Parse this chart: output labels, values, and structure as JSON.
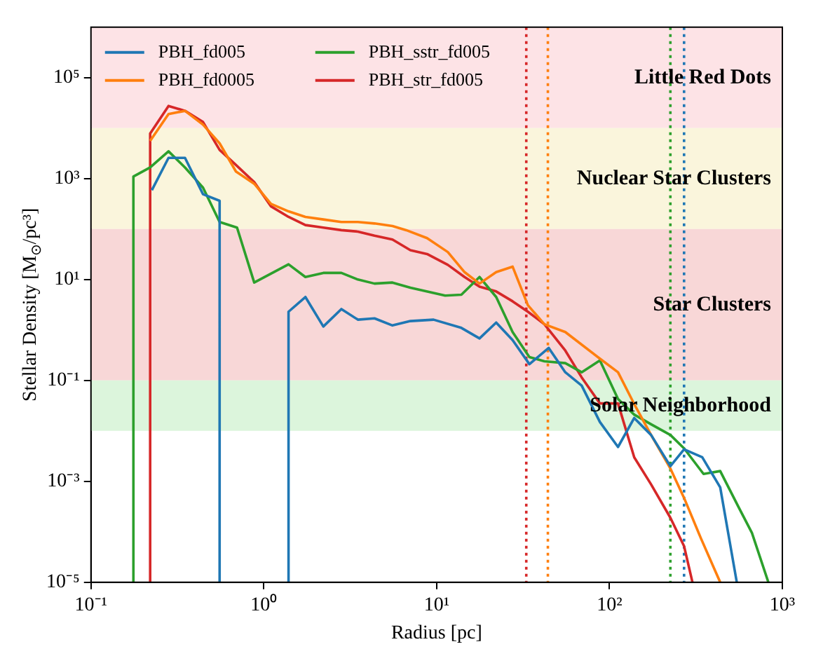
{
  "chart_data": {
    "type": "line",
    "xlabel": "Radius [pc]",
    "ylabel": "Stellar Density [M$_{⊙}$/pc³]",
    "log": "xy",
    "xlim": [
      0.1,
      1000
    ],
    "ylim": [
      1e-05,
      1000000.0
    ],
    "xticks": [
      {
        "value": 0.1,
        "label": "10⁻¹"
      },
      {
        "value": 1,
        "label": "10⁰"
      },
      {
        "value": 10,
        "label": "10¹"
      },
      {
        "value": 100,
        "label": "10²"
      },
      {
        "value": 1000,
        "label": "10³"
      }
    ],
    "yticks": [
      {
        "value": 1e-05,
        "label": "10⁻⁵"
      },
      {
        "value": 0.001,
        "label": "10⁻³"
      },
      {
        "value": 0.1,
        "label": "10⁻¹"
      },
      {
        "value": 10,
        "label": "10¹"
      },
      {
        "value": 1000,
        "label": "10³"
      },
      {
        "value": 100000,
        "label": "10⁵"
      }
    ],
    "grid": false,
    "legend": "top left",
    "marker": "none",
    "line_style": "solid",
    "series": [
      {
        "name": "PBH_fd005",
        "color": "#1f77b4",
        "x": [
          0.225,
          0.281,
          0.35,
          0.445,
          0.555,
          0.555,
          1.0,
          1.39,
          1.39,
          1.74,
          2.21,
          2.81,
          3.5,
          4.37,
          5.55,
          7.05,
          9.6,
          13.9,
          17.7,
          22.1,
          27.5,
          34.4,
          44.5,
          55.5,
          69,
          88,
          112,
          139,
          174,
          225,
          270,
          344,
          437,
          545
        ],
        "values": [
          590,
          2570,
          2570,
          490,
          363,
          1e-05,
          null,
          1e-05,
          2.3,
          4.5,
          1.17,
          2.6,
          1.6,
          1.7,
          1.23,
          1.5,
          1.6,
          1.1,
          0.68,
          1.4,
          0.63,
          0.21,
          0.44,
          0.145,
          0.079,
          0.015,
          0.0048,
          0.018,
          0.0083,
          0.002,
          0.0043,
          0.003,
          0.00076,
          1e-05
        ]
      },
      {
        "name": "PBH_fd0005",
        "color": "#ff7f0e",
        "x": [
          0.22,
          0.281,
          0.35,
          0.445,
          0.555,
          0.69,
          0.88,
          1.1,
          1.39,
          1.74,
          2.21,
          2.81,
          3.5,
          4.37,
          5.55,
          6.67,
          8.8,
          11.6,
          14.5,
          17.7,
          22.1,
          27.5,
          33.7,
          42,
          55.5,
          88,
          112,
          139,
          174,
          225,
          270,
          337,
          437
        ],
        "values": [
          5600,
          19000,
          22000,
          11700,
          5000,
          1380,
          790,
          316,
          224,
          174,
          155,
          138,
          138,
          129,
          115,
          95,
          66,
          35,
          14,
          8.3,
          14,
          18,
          3.1,
          1.3,
          0.91,
          0.27,
          0.145,
          0.034,
          0.0083,
          0.0018,
          0.00047,
          7.6e-05,
          1e-05
        ]
      },
      {
        "name": "PBH_sstr_fd005",
        "color": "#2ca02c",
        "x": [
          0.176,
          0.176,
          0.22,
          0.281,
          0.35,
          0.445,
          0.555,
          0.7,
          0.88,
          1.39,
          1.74,
          2.21,
          2.81,
          3.5,
          4.37,
          5.55,
          7.05,
          9.6,
          11.2,
          13.9,
          17.7,
          22.1,
          27.5,
          34.4,
          42,
          55.5,
          69,
          88,
          112,
          139,
          174,
          225,
          270,
          350,
          437,
          555,
          667,
          830
        ],
        "values": [
          1e-05,
          1100,
          1660,
          3470,
          1660,
          660,
          138,
          107,
          8.7,
          20,
          11.2,
          13.5,
          13.5,
          10,
          8.3,
          8.7,
          6.9,
          5.4,
          4.8,
          5.0,
          11.2,
          4.5,
          0.91,
          0.29,
          0.24,
          0.22,
          0.145,
          0.25,
          0.043,
          0.021,
          0.0135,
          0.0083,
          0.0045,
          0.0014,
          0.0016,
          0.00032,
          9.5e-05,
          1e-05
        ]
      },
      {
        "name": "PBH_str_fd005",
        "color": "#d62728",
        "x": [
          0.22,
          0.22,
          0.281,
          0.35,
          0.445,
          0.555,
          0.69,
          0.88,
          1.1,
          1.39,
          1.74,
          2.21,
          2.81,
          3.5,
          4.37,
          5.55,
          7.05,
          8.8,
          11.6,
          14.5,
          17.7,
          22.1,
          27.5,
          33.7,
          42,
          55.5,
          69,
          88,
          112,
          139,
          174,
          225,
          270,
          302
        ],
        "values": [
          1e-05,
          7800,
          27500,
          22000,
          13200,
          3700,
          1860,
          850,
          282,
          174,
          120,
          107,
          95,
          89,
          74,
          62,
          38,
          32,
          19.5,
          11.2,
          7.2,
          5.8,
          3.7,
          2.3,
          1.3,
          0.39,
          0.115,
          0.035,
          0.035,
          0.003,
          0.00087,
          0.00019,
          5.2e-05,
          1e-05
        ]
      }
    ],
    "bands": [
      {
        "axis": "y",
        "from": 10000,
        "to": 1000000,
        "label": "Little Red Dots",
        "color": "#fde3e6"
      },
      {
        "axis": "y",
        "from": 100,
        "to": 10000,
        "label": "Nuclear Star Clusters",
        "color": "#faf5dc"
      },
      {
        "axis": "y",
        "from": 0.1,
        "to": 100,
        "label": "Star Clusters",
        "color": "#f8d7d7"
      },
      {
        "axis": "y",
        "from": 0.01,
        "to": 0.1,
        "label": "Solar Neighborhood",
        "color": "#dcf5dc"
      }
    ],
    "ref_lines": [
      {
        "axis": "x",
        "value": 33,
        "color": "#d62728",
        "line_style": "dotted"
      },
      {
        "axis": "x",
        "value": 44,
        "color": "#ff7f0e",
        "line_style": "dotted"
      },
      {
        "axis": "x",
        "value": 225,
        "color": "#2ca02c",
        "line_style": "dotted"
      },
      {
        "axis": "x",
        "value": 270,
        "color": "#1f77b4",
        "line_style": "dotted"
      }
    ]
  }
}
